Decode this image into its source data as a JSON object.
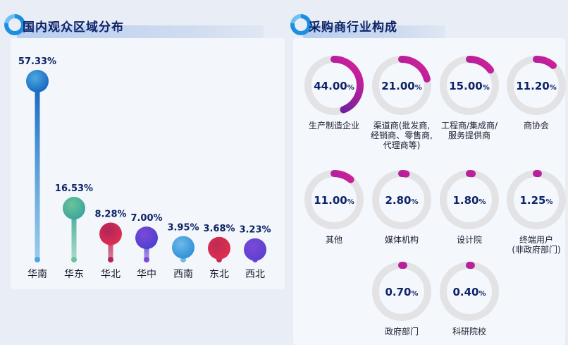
{
  "left_panel": {
    "title": "国内观众区域分布"
  },
  "right_panel": {
    "title": "采购商行业构成"
  },
  "colors": {
    "title_dark": "#0d2366",
    "label_dark": "#0d2366",
    "track_grey": "#e3e3e6",
    "arc_start": "#3a1f9e",
    "arc_end": "#e0209a"
  },
  "chart_data": [
    {
      "type": "bar",
      "categories": [
        "华南",
        "华东",
        "华北",
        "华中",
        "西南",
        "东北",
        "西北"
      ],
      "values": [
        57.33,
        16.53,
        8.28,
        7.0,
        3.95,
        3.68,
        3.23
      ],
      "labels": [
        "57.33%",
        "16.53%",
        "8.28%",
        "7.00%",
        "3.95%",
        "3.68%",
        "3.23%"
      ],
      "colors": [
        "#1565c0",
        "#3aa39b",
        "#e0304e",
        "#4b3fcf",
        "#2c8fd6",
        "#e0304e",
        "#5a3fcf"
      ],
      "stem_colors": [
        "#4da8e0",
        "#6ac49a",
        "#b0245a",
        "#7b4ad8",
        "#6fb9e8",
        "#c02a56",
        "#7a4ad8"
      ],
      "title": "国内观众区域分布",
      "xlabel": "",
      "ylabel": "",
      "ylim": [
        0,
        60
      ],
      "grid": false
    },
    {
      "type": "pie",
      "categories": [
        "生产制造企业",
        "渠道商(批发商,\n经销商、零售商,\n代理商等)",
        "工程商/集成商/\n服务提供商",
        "商协会",
        "其他",
        "媒体机构",
        "设计院",
        "终端用户\n(非政府部门)",
        "政府部门",
        "科研院校"
      ],
      "values": [
        44.0,
        21.0,
        15.0,
        11.2,
        11.0,
        2.8,
        1.8,
        1.25,
        0.7,
        0.4
      ],
      "labels": [
        "44.00",
        "21.00",
        "15.00",
        "11.20",
        "11.00",
        "2.80",
        "1.80",
        "1.25",
        "0.70",
        "0.40"
      ],
      "unit": "%",
      "title": "采购商行业构成"
    }
  ]
}
